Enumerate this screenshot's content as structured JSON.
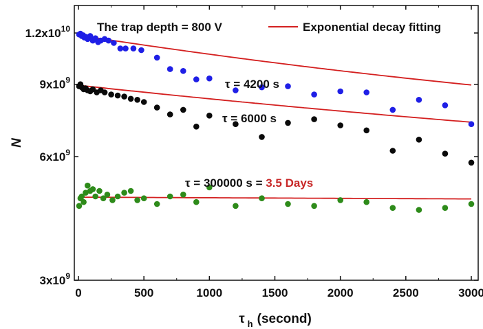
{
  "chart_data": {
    "type": "scatter",
    "xlabel": "τ",
    "xlabel_sub": "h",
    "xlabel_suffix": "(second)",
    "ylabel": "N",
    "xlim": [
      0,
      3000
    ],
    "ylim": [
      3000000000,
      14000000000
    ],
    "yscale": "log",
    "x_ticks": [
      0,
      500,
      1000,
      1500,
      2000,
      2500,
      3000
    ],
    "y_ticks": [
      {
        "value": 3000000000,
        "mantissa": "3x10",
        "exponent": "9"
      },
      {
        "value": 6000000000,
        "mantissa": "6x10",
        "exponent": "9"
      },
      {
        "value": 9000000000,
        "mantissa": "9x10",
        "exponent": "9"
      },
      {
        "value": 12000000000,
        "mantissa": "1.2x10",
        "exponent": "10"
      }
    ],
    "legend_position": "top-right",
    "annotations": {
      "trap_depth": "The trap depth = 800 V",
      "tau1": "τ = 4200 s",
      "tau2": "τ  = 6000 s",
      "tau3_prefix": "τ = 300000 s = ",
      "tau3_highlight": "3.5 Days"
    },
    "fit_legend": "Exponential decay fitting",
    "fit_color": "#d42020",
    "series": [
      {
        "color": "#1f1fe6",
        "tau": 4200,
        "fit_N0": 11850000000,
        "fit_offset": 6200000000,
        "points": [
          [
            5,
            11900000000
          ],
          [
            15,
            11950000000
          ],
          [
            25,
            11800000000
          ],
          [
            35,
            11850000000
          ],
          [
            45,
            11700000000
          ],
          [
            55,
            11750000000
          ],
          [
            70,
            11600000000
          ],
          [
            90,
            11800000000
          ],
          [
            110,
            11500000000
          ],
          [
            130,
            11650000000
          ],
          [
            150,
            11400000000
          ],
          [
            170,
            11500000000
          ],
          [
            200,
            11600000000
          ],
          [
            230,
            11500000000
          ],
          [
            270,
            11350000000
          ],
          [
            320,
            11000000000
          ],
          [
            360,
            11000000000
          ],
          [
            420,
            11000000000
          ],
          [
            480,
            10900000000
          ],
          [
            600,
            10450000000
          ],
          [
            700,
            9800000000
          ],
          [
            800,
            9700000000
          ],
          [
            900,
            9250000000
          ],
          [
            1000,
            9300000000
          ],
          [
            1200,
            8700000000
          ],
          [
            1400,
            8850000000
          ],
          [
            1600,
            8900000000
          ],
          [
            1800,
            8500000000
          ],
          [
            2000,
            8650000000
          ],
          [
            2200,
            8600000000
          ],
          [
            2400,
            7800000000
          ],
          [
            2600,
            8250000000
          ],
          [
            2800,
            8000000000
          ],
          [
            3000,
            7200000000
          ]
        ]
      },
      {
        "color": "#0a0a0a",
        "tau": 6000,
        "fit_N0": 8950000000,
        "fit_offset": 4700000000,
        "points": [
          [
            5,
            8900000000
          ],
          [
            15,
            9000000000
          ],
          [
            25,
            8850000000
          ],
          [
            40,
            8750000000
          ],
          [
            55,
            8800000000
          ],
          [
            70,
            8700000000
          ],
          [
            90,
            8650000000
          ],
          [
            110,
            8750000000
          ],
          [
            140,
            8600000000
          ],
          [
            170,
            8700000000
          ],
          [
            200,
            8600000000
          ],
          [
            250,
            8500000000
          ],
          [
            300,
            8450000000
          ],
          [
            350,
            8400000000
          ],
          [
            400,
            8300000000
          ],
          [
            450,
            8250000000
          ],
          [
            500,
            8150000000
          ],
          [
            600,
            7900000000
          ],
          [
            700,
            7600000000
          ],
          [
            800,
            7800000000
          ],
          [
            900,
            7100000000
          ],
          [
            1000,
            7550000000
          ],
          [
            1200,
            7200000000
          ],
          [
            1400,
            6700000000
          ],
          [
            1600,
            7250000000
          ],
          [
            1800,
            7400000000
          ],
          [
            2000,
            7150000000
          ],
          [
            2200,
            6950000000
          ],
          [
            2400,
            6200000000
          ],
          [
            2600,
            6600000000
          ],
          [
            2800,
            6100000000
          ],
          [
            3000,
            5800000000
          ]
        ]
      },
      {
        "color": "#2e8b1a",
        "tau": 300000,
        "fit_N0": 4780000000,
        "fit_offset": 0,
        "points": [
          [
            5,
            4550000000
          ],
          [
            15,
            4750000000
          ],
          [
            25,
            4800000000
          ],
          [
            40,
            4650000000
          ],
          [
            55,
            4900000000
          ],
          [
            70,
            5100000000
          ],
          [
            90,
            4950000000
          ],
          [
            110,
            5000000000
          ],
          [
            130,
            4800000000
          ],
          [
            160,
            4950000000
          ],
          [
            190,
            4750000000
          ],
          [
            220,
            4850000000
          ],
          [
            260,
            4700000000
          ],
          [
            300,
            4800000000
          ],
          [
            350,
            4900000000
          ],
          [
            400,
            4950000000
          ],
          [
            450,
            4700000000
          ],
          [
            500,
            4750000000
          ],
          [
            600,
            4600000000
          ],
          [
            700,
            4800000000
          ],
          [
            800,
            4850000000
          ],
          [
            900,
            4650000000
          ],
          [
            1000,
            5050000000
          ],
          [
            1200,
            4550000000
          ],
          [
            1400,
            4750000000
          ],
          [
            1600,
            4600000000
          ],
          [
            1800,
            4550000000
          ],
          [
            2000,
            4700000000
          ],
          [
            2200,
            4650000000
          ],
          [
            2400,
            4500000000
          ],
          [
            2600,
            4450000000
          ],
          [
            2800,
            4500000000
          ],
          [
            3000,
            4600000000
          ]
        ]
      }
    ]
  }
}
